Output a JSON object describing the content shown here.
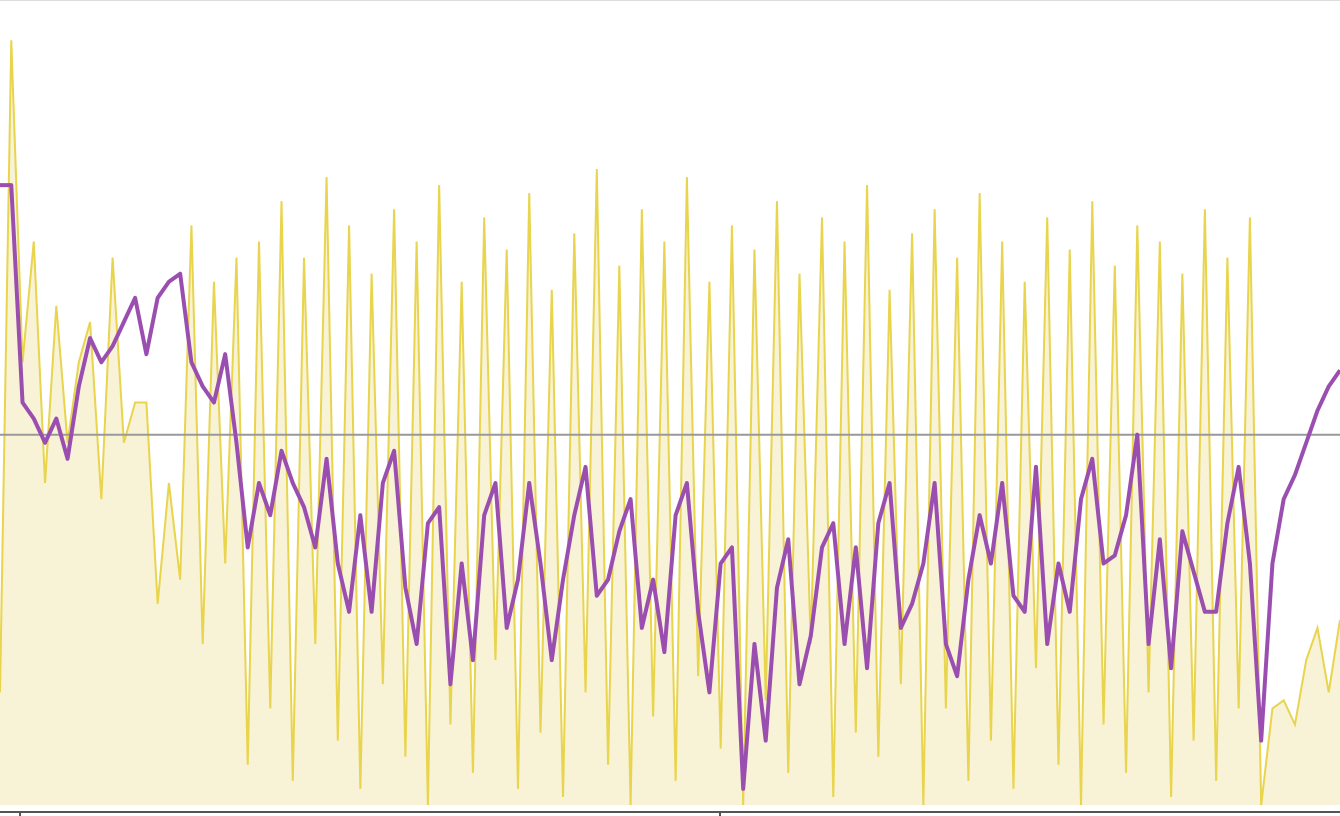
{
  "chart_data": {
    "type": "line",
    "x": [
      0,
      1,
      2,
      3,
      4,
      5,
      6,
      7,
      8,
      9,
      10,
      11,
      12,
      13,
      14,
      15,
      16,
      17,
      18,
      19,
      20,
      21,
      22,
      23,
      24,
      25,
      26,
      27,
      28,
      29,
      30,
      31,
      32,
      33,
      34,
      35,
      36,
      37,
      38,
      39,
      40,
      41,
      42,
      43,
      44,
      45,
      46,
      47,
      48,
      49,
      50,
      51,
      52,
      53,
      54,
      55,
      56,
      57,
      58,
      59,
      60,
      61,
      62,
      63,
      64,
      65,
      66,
      67,
      68,
      69,
      70,
      71,
      72,
      73,
      74,
      75,
      76,
      77,
      78,
      79,
      80,
      81,
      82,
      83,
      84,
      85,
      86,
      87,
      88,
      89,
      90,
      91,
      92,
      93,
      94,
      95,
      96,
      97,
      98,
      99,
      100,
      101,
      102,
      103,
      104,
      105,
      106,
      107,
      108,
      109,
      110,
      111,
      112,
      113,
      114,
      115,
      116,
      117,
      118,
      119
    ],
    "series": [
      {
        "kind": "area",
        "color": "#e8d44d",
        "fill": "#f8f2d6",
        "values": [
          14,
          95,
          55,
          70,
          40,
          62,
          45,
          55,
          60,
          38,
          68,
          45,
          50,
          50,
          25,
          40,
          28,
          72,
          20,
          65,
          30,
          68,
          5,
          70,
          12,
          75,
          3,
          68,
          20,
          78,
          8,
          72,
          2,
          66,
          15,
          74,
          6,
          70,
          0,
          77,
          10,
          65,
          4,
          73,
          18,
          69,
          2,
          76,
          9,
          64,
          1,
          71,
          14,
          79,
          5,
          67,
          0,
          74,
          11,
          70,
          3,
          78,
          16,
          65,
          7,
          72,
          0,
          69,
          13,
          75,
          4,
          66,
          20,
          73,
          1,
          70,
          9,
          77,
          6,
          64,
          15,
          71,
          0,
          74,
          12,
          68,
          3,
          76,
          8,
          70,
          2,
          65,
          17,
          73,
          5,
          69,
          0,
          75,
          10,
          67,
          4,
          72,
          14,
          70,
          1,
          66,
          8,
          74,
          3,
          68,
          12,
          73,
          0,
          12,
          13,
          10,
          18,
          22,
          14,
          23
        ]
      },
      {
        "kind": "line",
        "color": "#9a4fb0",
        "values": [
          77,
          77,
          50,
          48,
          45,
          48,
          43,
          52,
          58,
          55,
          57,
          60,
          63,
          56,
          63,
          65,
          66,
          55,
          52,
          50,
          56,
          45,
          32,
          40,
          36,
          44,
          40,
          37,
          32,
          43,
          30,
          24,
          36,
          24,
          40,
          44,
          27,
          20,
          35,
          37,
          15,
          30,
          18,
          36,
          40,
          22,
          28,
          40,
          30,
          18,
          28,
          36,
          42,
          26,
          28,
          34,
          38,
          22,
          28,
          19,
          36,
          40,
          24,
          14,
          30,
          32,
          2,
          20,
          8,
          27,
          33,
          15,
          21,
          32,
          35,
          20,
          32,
          17,
          35,
          40,
          22,
          25,
          30,
          40,
          20,
          16,
          28,
          36,
          30,
          40,
          26,
          24,
          42,
          20,
          30,
          24,
          38,
          43,
          30,
          31,
          36,
          46,
          20,
          33,
          17,
          34,
          29,
          24,
          24,
          35,
          42,
          30,
          8,
          30,
          38,
          41,
          45,
          49,
          52,
          54
        ]
      }
    ],
    "xlim": [
      0,
      119
    ],
    "ylim": [
      0,
      100
    ],
    "xticks": [
      1.78,
      63.94
    ],
    "reference_line": 46
  }
}
